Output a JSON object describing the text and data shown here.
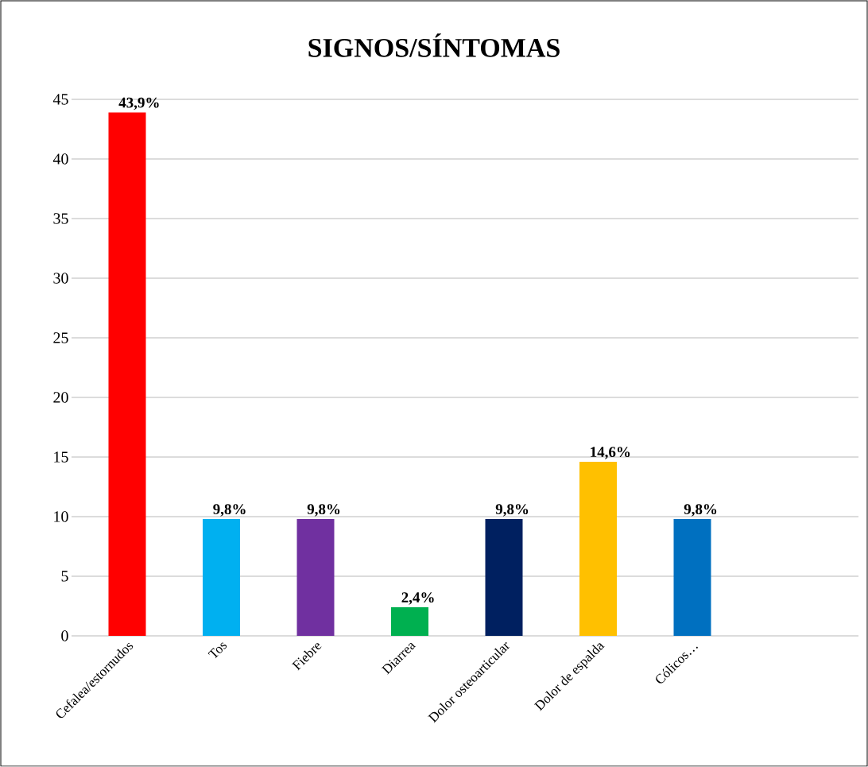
{
  "chart_data": {
    "type": "bar",
    "title": "SIGNOS/SÍNTOMAS",
    "categories": [
      "Cefalea/estornudos",
      "Tos",
      "Fiebre",
      "Diarrea",
      "Dolor osteoarticular",
      "Dolor de espalda",
      "Cólicos…"
    ],
    "values": [
      43.9,
      9.8,
      9.8,
      2.4,
      9.8,
      14.6,
      9.8
    ],
    "value_labels": [
      "43,9%",
      "9,8%",
      "9,8%",
      "2,4%",
      "9,8%",
      "14,6%",
      "9,8%"
    ],
    "colors": [
      "#ff0000",
      "#00b0f0",
      "#7030a0",
      "#00b050",
      "#002060",
      "#ffc000",
      "#0070c0"
    ],
    "ylim": [
      0,
      45
    ],
    "yticks": [
      0,
      5,
      10,
      15,
      20,
      25,
      30,
      35,
      40,
      45
    ],
    "grid": "y"
  }
}
